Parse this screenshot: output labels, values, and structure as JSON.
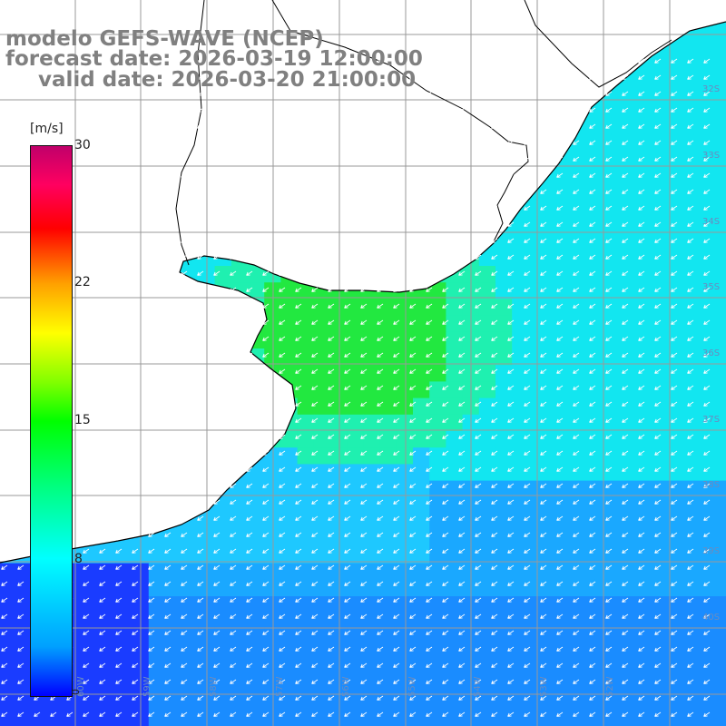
{
  "header": {
    "model": "modelo GEFS-WAVE (NCEP)",
    "forecast_date": "forecast date: 2026-03-19 12:00:00",
    "valid_date": "valid date: 2026-03-20 21:00:00"
  },
  "colorbar": {
    "unit": "[m/s]",
    "ticks": [
      "30",
      "22",
      "15",
      "8",
      "0"
    ],
    "tick_values": [
      30,
      22,
      15,
      8,
      0
    ],
    "min": 0,
    "max": 30,
    "colors": [
      "#0000ff",
      "#00a0ff",
      "#00ffff",
      "#00ff80",
      "#00ff00",
      "#80ff00",
      "#ffff00",
      "#ffa000",
      "#ff0000",
      "#ff0060",
      "#c0006a"
    ]
  },
  "map": {
    "lat_labels": [
      "32S",
      "33S",
      "34S",
      "35S",
      "36S",
      "37S",
      "38S",
      "39S",
      "40S"
    ],
    "lon_labels": [
      "60W",
      "59W",
      "58W",
      "57W",
      "56W",
      "55W",
      "54W",
      "53W",
      "52W"
    ],
    "wind_direction": "from northeast",
    "colors": {
      "land": "#ffffff",
      "coast": "#000000",
      "grid": "#999999",
      "arrow": "#ffffff"
    }
  }
}
